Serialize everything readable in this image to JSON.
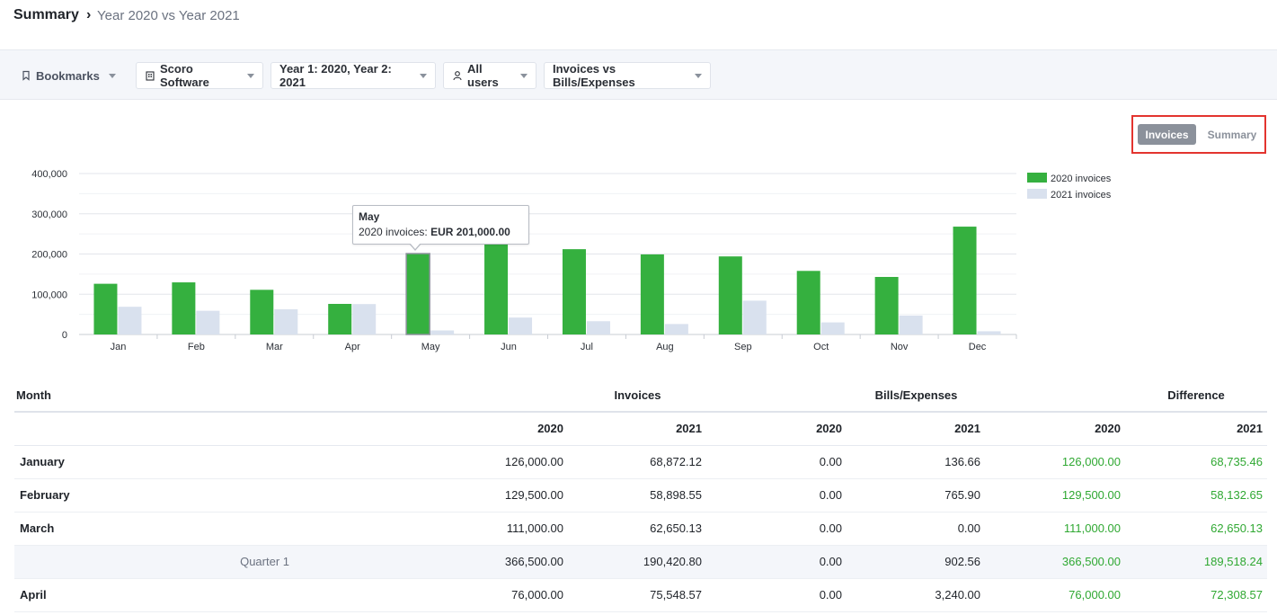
{
  "breadcrumb": {
    "title": "Summary",
    "sep": "›",
    "sub": "Year 2020 vs Year 2021"
  },
  "toolbar": {
    "bookmarks": "Bookmarks",
    "company": "Scoro Software",
    "years": "Year 1: 2020, Year 2: 2021",
    "users": "All users",
    "comparison": "Invoices vs Bills/Expenses"
  },
  "toggle": {
    "invoices": "Invoices",
    "summary": "Summary"
  },
  "tooltip": {
    "title": "May",
    "label": "2020 invoices: ",
    "value": "EUR 201,000.00"
  },
  "colors": {
    "series2020": "#35b03f",
    "series2021": "#d9e1ee",
    "positive": "#2fa832",
    "highlight": "#e3342f"
  },
  "chart_data": {
    "type": "bar",
    "categories": [
      "Jan",
      "Feb",
      "Mar",
      "Apr",
      "May",
      "Jun",
      "Jul",
      "Aug",
      "Sep",
      "Oct",
      "Nov",
      "Dec"
    ],
    "series": [
      {
        "name": "2020 invoices",
        "values": [
          126000,
          129500,
          111000,
          76000,
          201000,
          230000,
          212000,
          199000,
          194000,
          158000,
          143000,
          268000
        ]
      },
      {
        "name": "2021 invoices",
        "values": [
          68872,
          58899,
          62650,
          75549,
          10000,
          42000,
          33000,
          26000,
          84000,
          30000,
          47000,
          8000
        ]
      }
    ],
    "yticks": [
      "400,000",
      "300,000",
      "200,000",
      "100,000",
      "0"
    ],
    "ylim": [
      0,
      400000
    ],
    "grid": true,
    "legend": "right"
  },
  "table": {
    "headers": {
      "month": "Month",
      "invoices": "Invoices",
      "bills": "Bills/Expenses",
      "difference": "Difference"
    },
    "years": [
      "2020",
      "2021",
      "2020",
      "2021",
      "2020",
      "2021"
    ],
    "rows": [
      {
        "month": "January",
        "label": "",
        "inv2020": "126,000.00",
        "inv2021": "68,872.12",
        "bill2020": "0.00",
        "bill2021": "136.66",
        "diff2020": "126,000.00",
        "diff2021": "68,735.46"
      },
      {
        "month": "February",
        "label": "",
        "inv2020": "129,500.00",
        "inv2021": "58,898.55",
        "bill2020": "0.00",
        "bill2021": "765.90",
        "diff2020": "129,500.00",
        "diff2021": "58,132.65"
      },
      {
        "month": "March",
        "label": "",
        "inv2020": "111,000.00",
        "inv2021": "62,650.13",
        "bill2020": "0.00",
        "bill2021": "0.00",
        "diff2020": "111,000.00",
        "diff2021": "62,650.13"
      },
      {
        "month": "",
        "label": "Quarter 1",
        "inv2020": "366,500.00",
        "inv2021": "190,420.80",
        "bill2020": "0.00",
        "bill2021": "902.56",
        "diff2020": "366,500.00",
        "diff2021": "189,518.24"
      },
      {
        "month": "April",
        "label": "",
        "inv2020": "76,000.00",
        "inv2021": "75,548.57",
        "bill2020": "0.00",
        "bill2021": "3,240.00",
        "diff2020": "76,000.00",
        "diff2021": "72,308.57"
      }
    ]
  }
}
